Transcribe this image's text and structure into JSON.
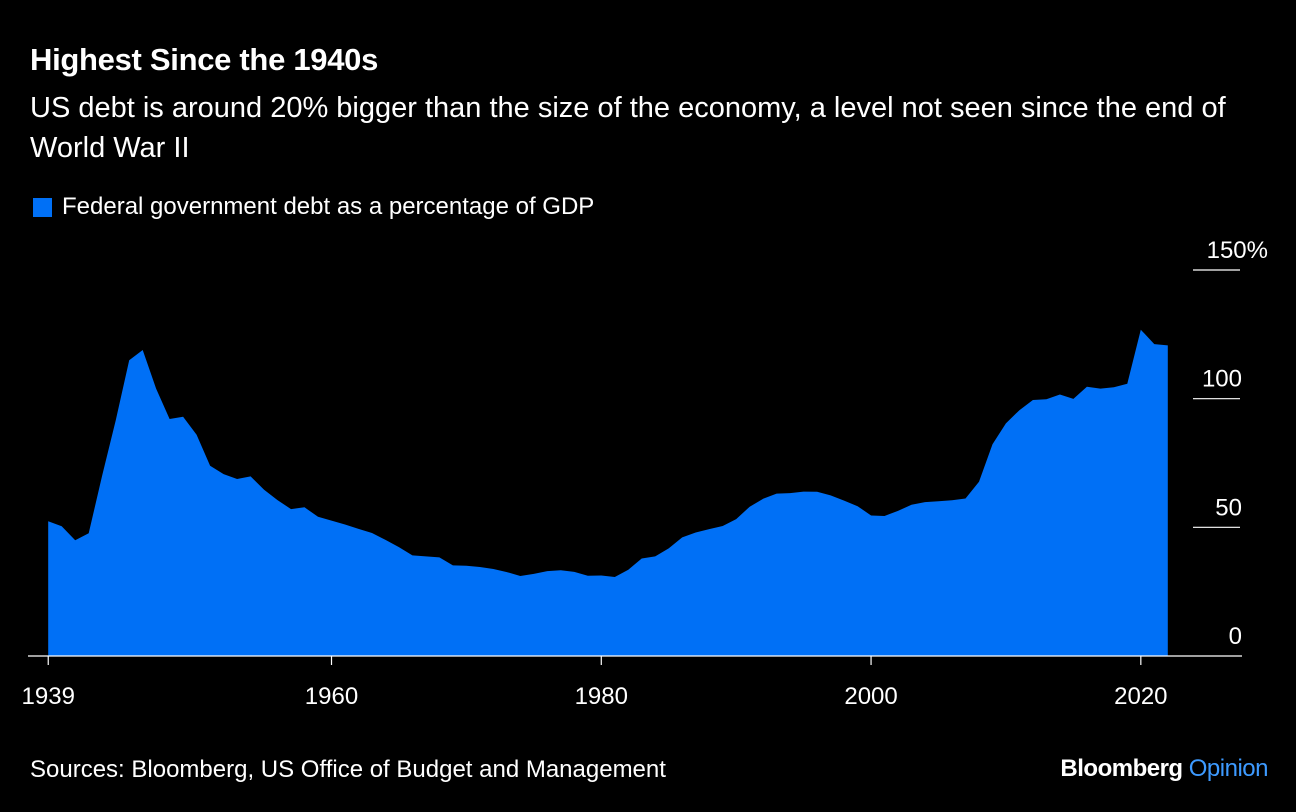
{
  "header": {
    "title": "Highest Since the 1940s",
    "subtitle": "US debt is around 20% bigger than the size of the economy, a level not seen since the end of World War II"
  },
  "footer": {
    "source": "Sources: Bloomberg, US Office of Budget and Management",
    "brand_main": "Bloomberg",
    "brand_sub": "Opinion"
  },
  "colors": {
    "background": "#000000",
    "series": "#0070f6",
    "brand_accent": "#3d9aff",
    "axis": "#ffffff"
  },
  "chart_data": {
    "type": "area",
    "title": "Highest Since the 1940s",
    "subtitle": "US debt is around 20% bigger than the size of the economy, a level not seen since the end of World War II",
    "xlabel": "",
    "ylabel": "",
    "xlim": [
      1937.5,
      2027.5
    ],
    "ylim": [
      0,
      150
    ],
    "x_ticks": [
      1939,
      1960,
      1980,
      2000,
      2020
    ],
    "y_ticks": [
      {
        "value": 0,
        "label": "0"
      },
      {
        "value": 50,
        "label": "50"
      },
      {
        "value": 100,
        "label": "100"
      },
      {
        "value": 150,
        "label": "150%"
      }
    ],
    "y_axis_side": "right",
    "grid": false,
    "legend": {
      "position": "top-left"
    },
    "series": [
      {
        "name": "Federal government debt as a percentage of GDP",
        "x": [
          1939,
          1940,
          1941,
          1942,
          1943,
          1944,
          1945,
          1946,
          1947,
          1948,
          1949,
          1950,
          1951,
          1952,
          1953,
          1954,
          1955,
          1956,
          1957,
          1958,
          1959,
          1960,
          1961,
          1962,
          1963,
          1964,
          1965,
          1966,
          1967,
          1968,
          1969,
          1970,
          1971,
          1972,
          1973,
          1974,
          1975,
          1976,
          1977,
          1978,
          1979,
          1980,
          1981,
          1982,
          1983,
          1984,
          1985,
          1986,
          1987,
          1988,
          1989,
          1990,
          1991,
          1992,
          1993,
          1994,
          1995,
          1996,
          1997,
          1998,
          1999,
          2000,
          2001,
          2002,
          2003,
          2004,
          2005,
          2006,
          2007,
          2008,
          2009,
          2010,
          2011,
          2012,
          2013,
          2014,
          2015,
          2016,
          2017,
          2018,
          2019,
          2020,
          2021,
          2022
        ],
        "values": [
          52.4,
          50.4,
          45.0,
          47.7,
          70.2,
          91.5,
          114.9,
          118.9,
          103.9,
          92.1,
          93.0,
          86.0,
          73.9,
          70.7,
          68.8,
          69.8,
          64.6,
          60.6,
          57.1,
          57.8,
          54.1,
          52.6,
          51.1,
          49.4,
          47.8,
          45.1,
          42.3,
          39.1,
          38.7,
          38.3,
          35.2,
          35.1,
          34.6,
          33.8,
          32.6,
          31.1,
          31.9,
          33.0,
          33.3,
          32.7,
          31.2,
          31.3,
          30.7,
          33.5,
          37.9,
          38.7,
          41.8,
          46.1,
          48.0,
          49.3,
          50.5,
          53.2,
          58.0,
          61.1,
          63.1,
          63.3,
          63.9,
          63.8,
          62.4,
          60.4,
          58.2,
          54.6,
          54.4,
          56.4,
          58.8,
          59.8,
          60.1,
          60.5,
          61.2,
          67.7,
          82.3,
          90.4,
          95.5,
          99.5,
          99.8,
          101.6,
          99.9,
          104.6,
          103.9,
          104.4,
          105.8,
          126.8,
          121.2,
          120.7
        ]
      }
    ]
  }
}
